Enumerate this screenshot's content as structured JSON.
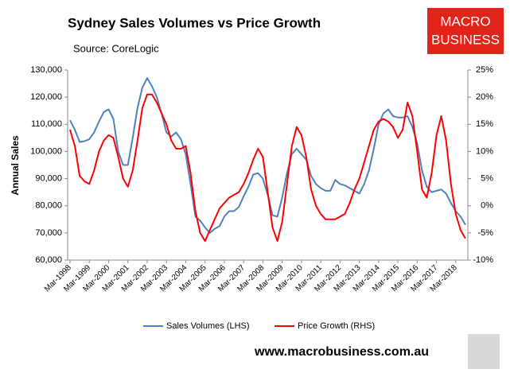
{
  "header": {
    "logo": [
      "MACRO",
      "BUSINESS"
    ]
  },
  "footer": {
    "url": "www.macrobusiness.com.au"
  },
  "chart_data": {
    "type": "line",
    "title": "Sydney Sales Volumes vs Price Growth",
    "subtitle": "Source: CoreLogic",
    "y_label": "Annual Sales",
    "legend": "bottom",
    "grid": false,
    "categories": [
      "Mar-1998",
      null,
      null,
      null,
      "Mar-1999",
      null,
      null,
      null,
      "Mar-2000",
      null,
      null,
      null,
      "Mar-2001",
      null,
      null,
      null,
      "Mar-2002",
      null,
      null,
      null,
      "Mar-2003",
      null,
      null,
      null,
      "Mar-2004",
      null,
      null,
      null,
      "Mar-2005",
      null,
      null,
      null,
      "Mar-2006",
      null,
      null,
      null,
      "Mar-2007",
      null,
      null,
      null,
      "Mar-2008",
      null,
      null,
      null,
      "Mar-2009",
      null,
      null,
      null,
      "Mar-2010",
      null,
      null,
      null,
      "Mar-2011",
      null,
      null,
      null,
      "Mar-2012",
      null,
      null,
      null,
      "Mar-2013",
      null,
      null,
      null,
      "Mar-2014",
      null,
      null,
      null,
      "Mar-2015",
      null,
      null,
      null,
      "Mar-2016",
      null,
      null,
      null,
      "Mar-2017",
      null,
      null,
      null,
      "Mar-2018",
      null,
      null
    ],
    "ylim": [
      60000,
      130000
    ],
    "yticks": [
      {
        "value": 60000,
        "label": "60,000"
      },
      {
        "value": 70000,
        "label": "70,000"
      },
      {
        "value": 80000,
        "label": "80,000"
      },
      {
        "value": 90000,
        "label": "90,000"
      },
      {
        "value": 100000,
        "label": "100,000"
      },
      {
        "value": 110000,
        "label": "110,000"
      },
      {
        "value": 120000,
        "label": "120,000"
      },
      {
        "value": 130000,
        "label": "130,000"
      }
    ],
    "y2lim": [
      -10,
      25
    ],
    "y2ticks": [
      {
        "value": -10,
        "label": "-10%"
      },
      {
        "value": -5,
        "label": "-5%"
      },
      {
        "value": 0,
        "label": "0%"
      },
      {
        "value": 5,
        "label": "5%"
      },
      {
        "value": 10,
        "label": "10%"
      },
      {
        "value": 15,
        "label": "15%"
      },
      {
        "value": 20,
        "label": "20%"
      },
      {
        "value": 25,
        "label": "25%"
      }
    ],
    "series": [
      {
        "name": "Sales Volumes (LHS)",
        "color": "#4f81bd",
        "axis": "y",
        "values": [
          111500,
          108000,
          103500,
          103800,
          104500,
          107000,
          111000,
          114500,
          115500,
          112000,
          100000,
          95000,
          95000,
          105000,
          116000,
          123500,
          127000,
          124000,
          120000,
          114000,
          107000,
          105500,
          107000,
          104500,
          99000,
          88000,
          76000,
          74500,
          72000,
          70000,
          71500,
          72500,
          76000,
          78000,
          78000,
          79500,
          83500,
          87000,
          91500,
          92000,
          90000,
          84000,
          76500,
          76000,
          83000,
          92000,
          99000,
          101000,
          99000,
          97000,
          91000,
          88000,
          86500,
          85500,
          85500,
          89500,
          88000,
          87500,
          86500,
          85500,
          84500,
          88000,
          93000,
          101000,
          110000,
          114000,
          115500,
          113000,
          112500,
          112500,
          113000,
          109000,
          103000,
          93000,
          87000,
          85000,
          85500,
          86000,
          84500,
          81000,
          78000,
          76000,
          73000
        ]
      },
      {
        "name": "Price Growth (RHS)",
        "color": "#ff0000",
        "axis": "y2",
        "values": [
          14,
          11,
          5.5,
          4.5,
          4,
          6.5,
          10,
          12,
          13,
          12.5,
          9,
          5,
          3.5,
          6.5,
          12,
          18,
          20.5,
          20.5,
          19,
          17,
          15,
          12,
          10.5,
          10.5,
          11,
          6,
          -1,
          -5,
          -6.5,
          -4.5,
          -2.5,
          -0.5,
          0.5,
          1.5,
          2,
          2.5,
          4,
          6,
          8.5,
          10.5,
          9,
          2.5,
          -4,
          -6.5,
          -3,
          4,
          11,
          14.5,
          13,
          9,
          3,
          0,
          -1.5,
          -2.5,
          -2.5,
          -2.5,
          -2,
          -1.5,
          0.5,
          3,
          5,
          8,
          11,
          14,
          15.5,
          16,
          15.5,
          14.5,
          12.5,
          14,
          19,
          16.5,
          10,
          3,
          1.5,
          6,
          13,
          16.5,
          12,
          4,
          -1.5,
          -4.5,
          -6
        ]
      }
    ]
  }
}
